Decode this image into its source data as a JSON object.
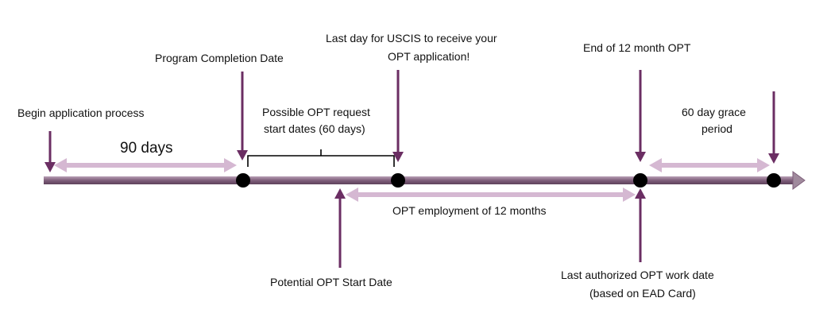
{
  "colors": {
    "timeline": "#8a6a85",
    "timeline_dark": "#6f4f6c",
    "arrow": "#6b2e63",
    "span_arrow": "#d5b8d2",
    "dot": "#000000",
    "text": "#111111"
  },
  "labels": {
    "begin_application": "Begin application process",
    "ninety_days": "90 days",
    "program_completion": "Program Completion Date",
    "possible_opt_line1": "Possible OPT request",
    "possible_opt_line2": "start dates (60 days)",
    "last_day_uscis_line1": "Last day for USCIS to receive your",
    "last_day_uscis_line2": "OPT application!",
    "end_12_month": "End of 12 month OPT",
    "grace_line1": "60 day grace",
    "grace_line2": "period",
    "opt_employment": "OPT employment of 12 months",
    "potential_start": "Potential OPT Start Date",
    "last_authorized_line1": "Last authorized OPT work date",
    "last_authorized_line2": "(based on EAD Card)"
  }
}
